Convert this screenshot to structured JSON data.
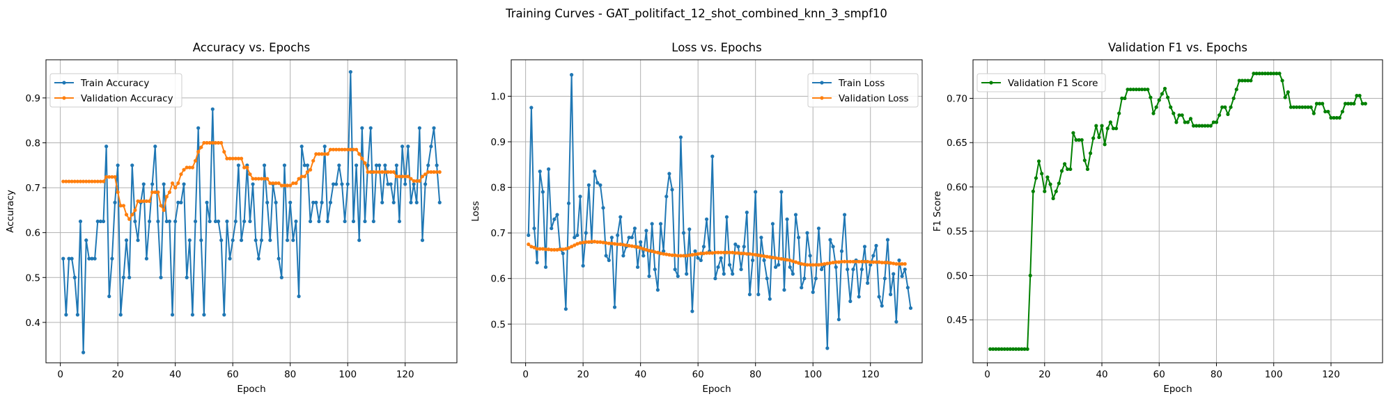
{
  "figure": {
    "suptitle": "Training Curves - GAT_politifact_12_shot_combined_knn_3_smpf10"
  },
  "colors": {
    "blue": "#1f77b4",
    "orange": "#ff7f0e",
    "green": "#008000"
  },
  "chart_data": [
    {
      "type": "line",
      "title": "Accuracy vs. Epochs",
      "xlabel": "Epoch",
      "ylabel": "Accuracy",
      "xlim": [
        -5,
        138
      ],
      "ylim": [
        0.31,
        0.985
      ],
      "xticks": [
        0,
        20,
        40,
        60,
        80,
        100,
        120
      ],
      "yticks": [
        0.4,
        0.5,
        0.6,
        0.7,
        0.8,
        0.9
      ],
      "ytick_labels": [
        "0.4",
        "0.5",
        "0.6",
        "0.7",
        "0.8",
        "0.9"
      ],
      "grid": true,
      "legend_position": "upper-left",
      "series": [
        {
          "name": "Train Accuracy",
          "color": "#1f77b4",
          "values": [
            0.542,
            0.417,
            0.542,
            0.542,
            0.5,
            0.417,
            0.625,
            0.333,
            0.583,
            0.542,
            0.542,
            0.542,
            0.625,
            0.625,
            0.625,
            0.792,
            0.458,
            0.542,
            0.667,
            0.75,
            0.417,
            0.5,
            0.583,
            0.5,
            0.75,
            0.625,
            0.583,
            0.667,
            0.708,
            0.542,
            0.625,
            0.708,
            0.792,
            0.625,
            0.5,
            0.708,
            0.625,
            0.625,
            0.417,
            0.625,
            0.667,
            0.667,
            0.708,
            0.5,
            0.583,
            0.417,
            0.625,
            0.833,
            0.583,
            0.417,
            0.667,
            0.625,
            0.875,
            0.625,
            0.625,
            0.583,
            0.417,
            0.625,
            0.542,
            0.583,
            0.625,
            0.75,
            0.583,
            0.625,
            0.75,
            0.625,
            0.708,
            0.583,
            0.542,
            0.583,
            0.75,
            0.667,
            0.583,
            0.708,
            0.667,
            0.542,
            0.5,
            0.75,
            0.583,
            0.667,
            0.583,
            0.625,
            0.458,
            0.792,
            0.75,
            0.75,
            0.625,
            0.667,
            0.667,
            0.625,
            0.667,
            0.792,
            0.625,
            0.667,
            0.708,
            0.708,
            0.75,
            0.708,
            0.625,
            0.708,
            0.958,
            0.625,
            0.75,
            0.583,
            0.833,
            0.625,
            0.75,
            0.833,
            0.625,
            0.75,
            0.75,
            0.667,
            0.75,
            0.708,
            0.708,
            0.667,
            0.75,
            0.625,
            0.792,
            0.708,
            0.792,
            0.667,
            0.708,
            0.667,
            0.833,
            0.583,
            0.708,
            0.75,
            0.792,
            0.833,
            0.75,
            0.667
          ]
        },
        {
          "name": "Validation Accuracy",
          "color": "#ff7f0e",
          "values": [
            0.714,
            0.714,
            0.714,
            0.714,
            0.714,
            0.714,
            0.714,
            0.714,
            0.714,
            0.714,
            0.714,
            0.714,
            0.714,
            0.714,
            0.714,
            0.724,
            0.724,
            0.724,
            0.724,
            0.69,
            0.66,
            0.66,
            0.64,
            0.63,
            0.64,
            0.65,
            0.67,
            0.67,
            0.67,
            0.67,
            0.67,
            0.69,
            0.69,
            0.69,
            0.66,
            0.65,
            0.68,
            0.69,
            0.71,
            0.7,
            0.71,
            0.73,
            0.74,
            0.745,
            0.745,
            0.745,
            0.76,
            0.78,
            0.79,
            0.8,
            0.8,
            0.8,
            0.8,
            0.8,
            0.8,
            0.8,
            0.78,
            0.765,
            0.765,
            0.765,
            0.765,
            0.765,
            0.765,
            0.745,
            0.745,
            0.73,
            0.72,
            0.72,
            0.72,
            0.72,
            0.72,
            0.72,
            0.71,
            0.71,
            0.71,
            0.71,
            0.705,
            0.705,
            0.705,
            0.705,
            0.71,
            0.71,
            0.72,
            0.725,
            0.725,
            0.735,
            0.74,
            0.76,
            0.775,
            0.775,
            0.775,
            0.775,
            0.775,
            0.785,
            0.785,
            0.785,
            0.785,
            0.785,
            0.785,
            0.785,
            0.785,
            0.785,
            0.785,
            0.775,
            0.765,
            0.755,
            0.735,
            0.735,
            0.735,
            0.735,
            0.735,
            0.735,
            0.735,
            0.735,
            0.735,
            0.735,
            0.725,
            0.725,
            0.725,
            0.725,
            0.725,
            0.72,
            0.715,
            0.715,
            0.715,
            0.725,
            0.73,
            0.735,
            0.735,
            0.735,
            0.735,
            0.735
          ]
        }
      ]
    },
    {
      "type": "line",
      "title": "Loss vs. Epochs",
      "xlabel": "Epoch",
      "ylabel": "Loss",
      "xlim": [
        -5,
        138
      ],
      "ylim": [
        0.415,
        1.08
      ],
      "xticks": [
        0,
        20,
        40,
        60,
        80,
        100,
        120
      ],
      "yticks": [
        0.5,
        0.6,
        0.7,
        0.8,
        0.9,
        1.0
      ],
      "ytick_labels": [
        "0.5",
        "0.6",
        "0.7",
        "0.8",
        "0.9",
        "1.0"
      ],
      "grid": true,
      "legend_position": "upper-right",
      "series": [
        {
          "name": "Train Loss",
          "color": "#1f77b4",
          "values": [
            0.695,
            0.975,
            0.71,
            0.635,
            0.835,
            0.79,
            0.625,
            0.84,
            0.71,
            0.73,
            0.74,
            0.665,
            0.655,
            0.533,
            0.765,
            1.047,
            0.69,
            0.695,
            0.78,
            0.628,
            0.7,
            0.805,
            0.68,
            0.835,
            0.81,
            0.805,
            0.755,
            0.65,
            0.64,
            0.69,
            0.537,
            0.695,
            0.735,
            0.65,
            0.67,
            0.69,
            0.69,
            0.71,
            0.625,
            0.68,
            0.65,
            0.705,
            0.605,
            0.72,
            0.62,
            0.575,
            0.72,
            0.66,
            0.78,
            0.83,
            0.795,
            0.62,
            0.605,
            0.91,
            0.7,
            0.61,
            0.708,
            0.528,
            0.66,
            0.645,
            0.64,
            0.67,
            0.73,
            0.66,
            0.868,
            0.6,
            0.625,
            0.645,
            0.61,
            0.735,
            0.63,
            0.61,
            0.675,
            0.67,
            0.62,
            0.67,
            0.745,
            0.565,
            0.64,
            0.79,
            0.565,
            0.69,
            0.64,
            0.6,
            0.555,
            0.72,
            0.625,
            0.63,
            0.79,
            0.575,
            0.73,
            0.625,
            0.61,
            0.74,
            0.69,
            0.58,
            0.6,
            0.7,
            0.65,
            0.57,
            0.6,
            0.71,
            0.62,
            0.63,
            0.447,
            0.685,
            0.67,
            0.625,
            0.51,
            0.66,
            0.74,
            0.62,
            0.55,
            0.62,
            0.64,
            0.56,
            0.62,
            0.67,
            0.59,
            0.63,
            0.65,
            0.672,
            0.56,
            0.54,
            0.6,
            0.685,
            0.565,
            0.61,
            0.505,
            0.64,
            0.605,
            0.62,
            0.58,
            0.535
          ]
        },
        {
          "name": "Validation Loss",
          "color": "#ff7f0e",
          "values": [
            0.675,
            0.67,
            0.668,
            0.665,
            0.665,
            0.665,
            0.664,
            0.664,
            0.663,
            0.663,
            0.663,
            0.664,
            0.664,
            0.665,
            0.667,
            0.67,
            0.673,
            0.676,
            0.678,
            0.679,
            0.68,
            0.68,
            0.681,
            0.681,
            0.68,
            0.68,
            0.679,
            0.678,
            0.677,
            0.677,
            0.676,
            0.675,
            0.675,
            0.674,
            0.673,
            0.672,
            0.671,
            0.67,
            0.669,
            0.667,
            0.665,
            0.663,
            0.661,
            0.66,
            0.658,
            0.657,
            0.655,
            0.654,
            0.653,
            0.652,
            0.651,
            0.651,
            0.65,
            0.65,
            0.65,
            0.65,
            0.651,
            0.652,
            0.653,
            0.654,
            0.655,
            0.655,
            0.656,
            0.656,
            0.656,
            0.657,
            0.657,
            0.657,
            0.657,
            0.657,
            0.657,
            0.657,
            0.656,
            0.656,
            0.655,
            0.655,
            0.654,
            0.654,
            0.653,
            0.652,
            0.651,
            0.65,
            0.649,
            0.648,
            0.647,
            0.646,
            0.645,
            0.644,
            0.643,
            0.642,
            0.641,
            0.64,
            0.638,
            0.636,
            0.634,
            0.632,
            0.631,
            0.63,
            0.63,
            0.63,
            0.63,
            0.63,
            0.631,
            0.632,
            0.633,
            0.634,
            0.635,
            0.636,
            0.636,
            0.637,
            0.637,
            0.637,
            0.637,
            0.637,
            0.637,
            0.637,
            0.637,
            0.637,
            0.637,
            0.636,
            0.636,
            0.636,
            0.636,
            0.635,
            0.635,
            0.635,
            0.634,
            0.633,
            0.632,
            0.632,
            0.632,
            0.632
          ]
        }
      ]
    },
    {
      "type": "line",
      "title": "Validation F1 vs. Epochs",
      "xlabel": "Epoch",
      "ylabel": "F1 Score",
      "xlim": [
        -5,
        138
      ],
      "ylim": [
        0.4015,
        0.7435
      ],
      "xticks": [
        0,
        20,
        40,
        60,
        80,
        100,
        120
      ],
      "yticks": [
        0.45,
        0.5,
        0.55,
        0.6,
        0.65,
        0.7
      ],
      "ytick_labels": [
        "0.45",
        "0.50",
        "0.55",
        "0.60",
        "0.65",
        "0.70"
      ],
      "grid": true,
      "legend_position": "upper-left",
      "series": [
        {
          "name": "Validation F1 Score",
          "color": "#008000",
          "values": [
            0.417,
            0.417,
            0.417,
            0.417,
            0.417,
            0.417,
            0.417,
            0.417,
            0.417,
            0.417,
            0.417,
            0.417,
            0.417,
            0.417,
            0.5,
            0.595,
            0.61,
            0.629,
            0.615,
            0.595,
            0.611,
            0.603,
            0.587,
            0.595,
            0.604,
            0.618,
            0.626,
            0.62,
            0.62,
            0.661,
            0.653,
            0.653,
            0.653,
            0.63,
            0.62,
            0.638,
            0.655,
            0.669,
            0.656,
            0.669,
            0.648,
            0.666,
            0.673,
            0.666,
            0.666,
            0.683,
            0.7,
            0.7,
            0.71,
            0.71,
            0.71,
            0.71,
            0.71,
            0.71,
            0.71,
            0.71,
            0.701,
            0.683,
            0.69,
            0.698,
            0.705,
            0.711,
            0.701,
            0.69,
            0.683,
            0.673,
            0.681,
            0.681,
            0.673,
            0.673,
            0.677,
            0.669,
            0.669,
            0.669,
            0.669,
            0.669,
            0.669,
            0.669,
            0.673,
            0.673,
            0.681,
            0.69,
            0.69,
            0.682,
            0.69,
            0.7,
            0.71,
            0.72,
            0.72,
            0.72,
            0.72,
            0.72,
            0.728,
            0.728,
            0.728,
            0.728,
            0.728,
            0.728,
            0.728,
            0.728,
            0.728,
            0.728,
            0.72,
            0.701,
            0.707,
            0.69,
            0.69,
            0.69,
            0.69,
            0.69,
            0.69,
            0.69,
            0.69,
            0.683,
            0.694,
            0.694,
            0.694,
            0.685,
            0.685,
            0.678,
            0.678,
            0.678,
            0.678,
            0.685,
            0.694,
            0.694,
            0.694,
            0.694,
            0.703,
            0.703,
            0.694,
            0.694
          ]
        }
      ]
    }
  ]
}
